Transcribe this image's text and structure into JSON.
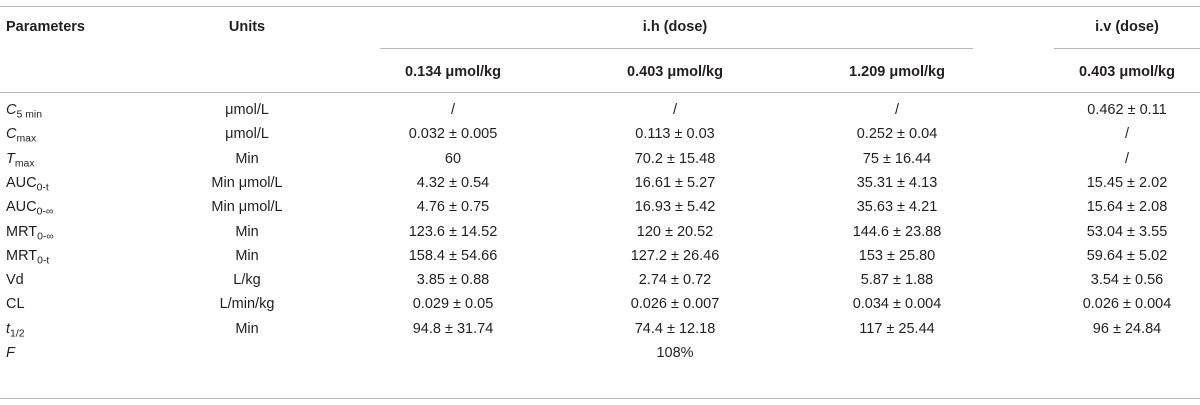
{
  "header": {
    "parameters": "Parameters",
    "units": "Units",
    "ih_group": "i.h (dose)",
    "iv_group": "i.v (dose)",
    "dose_cols": [
      "0.134 μmol/kg",
      "0.403 μmol/kg",
      "1.209 μmol/kg",
      "0.403 μmol/kg"
    ]
  },
  "rows": [
    {
      "param": "C",
      "param_sub": "5 min",
      "italic": true,
      "units": "μmol/L",
      "v": [
        "/",
        "/",
        "/",
        "0.462 ± 0.11"
      ]
    },
    {
      "param": "C",
      "param_sub": "max",
      "italic": true,
      "units": "μmol/L",
      "v": [
        "0.032 ± 0.005",
        "0.113 ± 0.03",
        "0.252 ± 0.04",
        "/"
      ]
    },
    {
      "param": "T",
      "param_sub": "max",
      "italic": true,
      "units": "Min",
      "v": [
        "60",
        "70.2 ± 15.48",
        "75 ± 16.44",
        "/"
      ]
    },
    {
      "param": "AUC",
      "param_sub": "0-t",
      "italic": false,
      "units": "Min μmol/L",
      "v": [
        "4.32 ± 0.54",
        "16.61 ± 5.27",
        "35.31 ± 4.13",
        "15.45 ± 2.02"
      ]
    },
    {
      "param": "AUC",
      "param_sub": "0-∞",
      "italic": false,
      "units": "Min μmol/L",
      "v": [
        "4.76 ± 0.75",
        "16.93 ± 5.42",
        "35.63 ± 4.21",
        "15.64 ± 2.08"
      ]
    },
    {
      "param": "MRT",
      "param_sub": "0-∞",
      "italic": false,
      "units": "Min",
      "v": [
        "123.6 ± 14.52",
        "120 ± 20.52",
        "144.6 ± 23.88",
        "53.04 ± 3.55"
      ]
    },
    {
      "param": "MRT",
      "param_sub": "0-t",
      "italic": false,
      "units": "Min",
      "v": [
        "158.4 ± 54.66",
        "127.2 ± 26.46",
        "153 ± 25.80",
        "59.64 ± 5.02"
      ]
    },
    {
      "param": "Vd",
      "param_sub": "",
      "italic": false,
      "units": "L/kg",
      "v": [
        "3.85 ± 0.88",
        "2.74 ± 0.72",
        "5.87 ± 1.88",
        "3.54 ± 0.56"
      ]
    },
    {
      "param": "CL",
      "param_sub": "",
      "italic": false,
      "units": "L/min/kg",
      "v": [
        "0.029 ± 0.05",
        "0.026 ± 0.007",
        "0.034 ± 0.004",
        "0.026 ± 0.004"
      ]
    },
    {
      "param": "t",
      "param_sub": "1/2",
      "italic": true,
      "units": "Min",
      "v": [
        "94.8 ± 31.74",
        "74.4 ± 12.18",
        "117 ± 25.44",
        "96 ± 24.84"
      ]
    },
    {
      "param": "F",
      "param_sub": "",
      "italic": true,
      "units": "",
      "v": [
        "",
        "108%",
        "",
        ""
      ]
    }
  ]
}
